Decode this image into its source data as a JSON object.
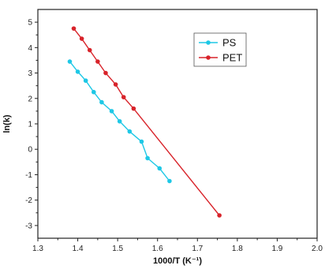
{
  "chart_data": {
    "type": "line",
    "title": "",
    "xlabel": "1000/T (K⁻¹)",
    "ylabel": "ln(k)",
    "xlim": [
      1.3,
      2.0
    ],
    "ylim": [
      -3.5,
      5.5
    ],
    "x_ticks": [
      1.3,
      1.4,
      1.5,
      1.6,
      1.7,
      1.8,
      1.9,
      2.0
    ],
    "y_ticks": [
      -3,
      -2,
      -1,
      0,
      1,
      2,
      3,
      4,
      5
    ],
    "grid": false,
    "legend_position": "top-right",
    "series": [
      {
        "name": "PS",
        "color": "#1ec8e6",
        "x": [
          1.38,
          1.4,
          1.42,
          1.44,
          1.46,
          1.485,
          1.505,
          1.53,
          1.56,
          1.575,
          1.605,
          1.63
        ],
        "y": [
          3.45,
          3.05,
          2.7,
          2.25,
          1.85,
          1.5,
          1.1,
          0.7,
          0.3,
          -0.35,
          -0.75,
          -1.25
        ]
      },
      {
        "name": "PET",
        "color": "#d8232a",
        "x": [
          1.39,
          1.41,
          1.43,
          1.45,
          1.47,
          1.495,
          1.515,
          1.54,
          1.755
        ],
        "y": [
          4.75,
          4.35,
          3.9,
          3.45,
          3.0,
          2.55,
          2.05,
          1.6,
          -2.6
        ]
      }
    ]
  }
}
